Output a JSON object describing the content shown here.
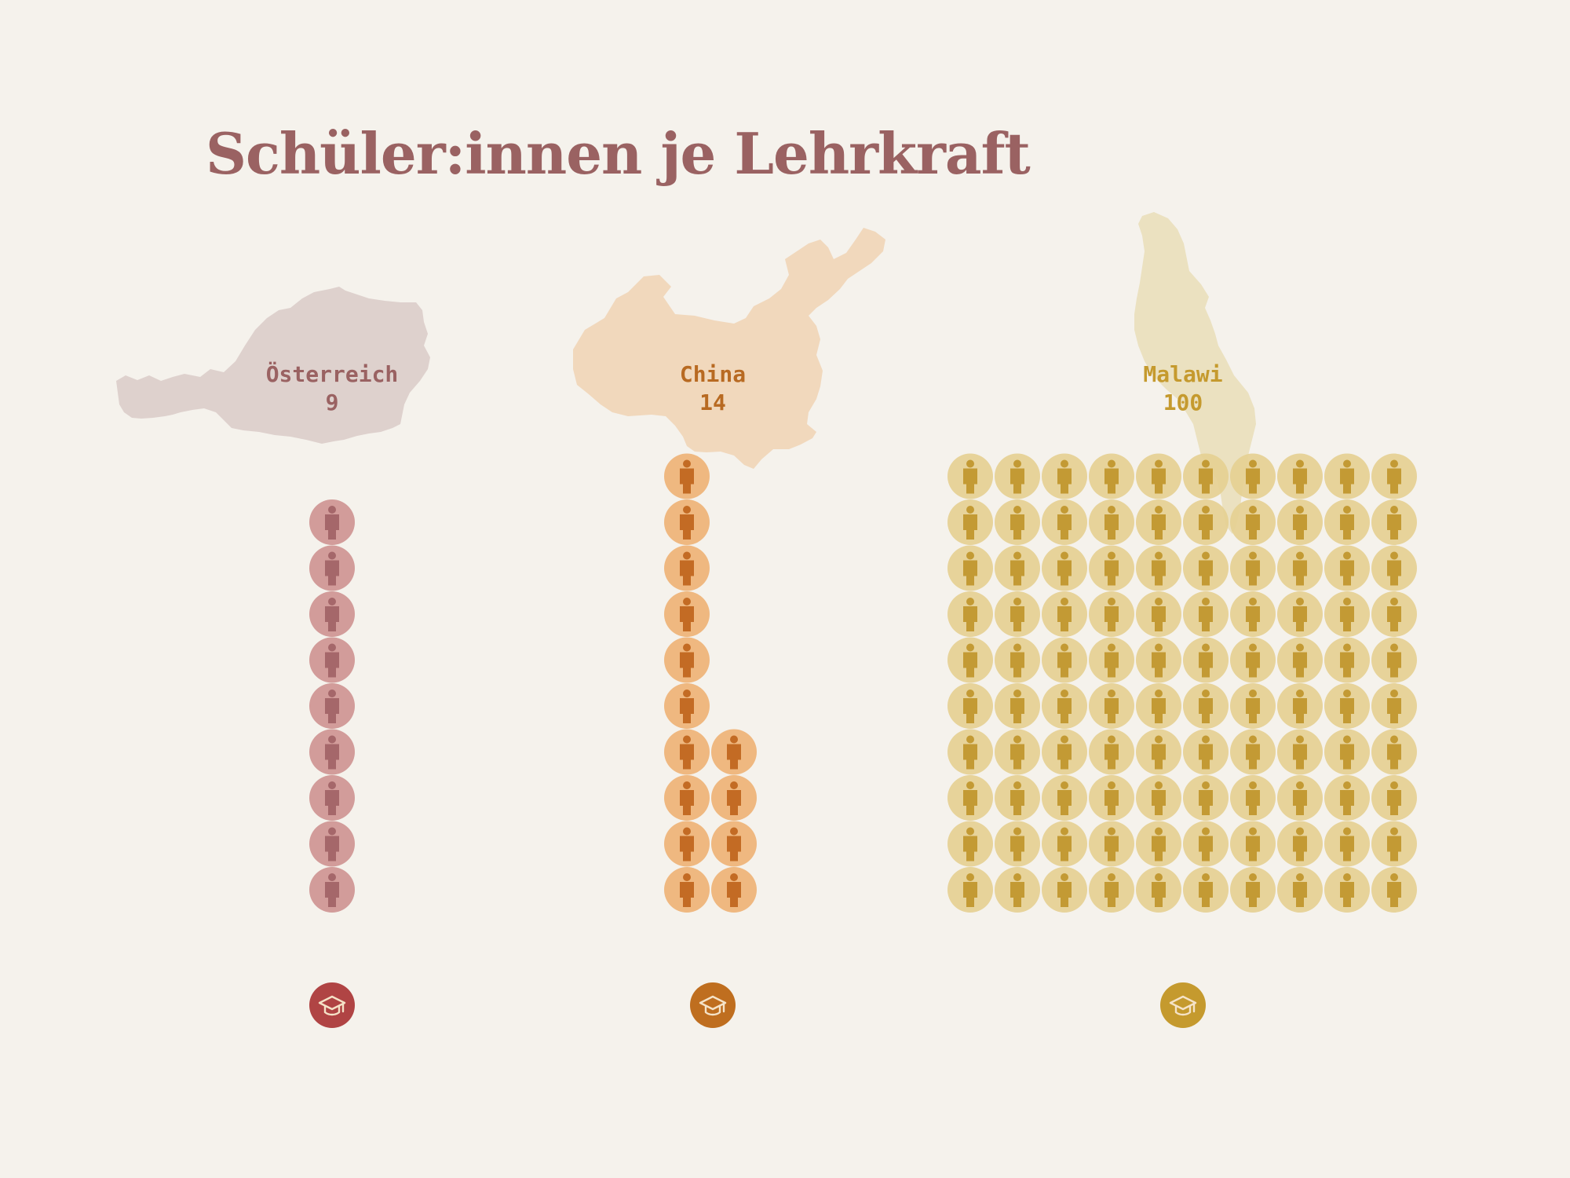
{
  "title": "Schüler:innen je Lehrkraft",
  "chart_data": {
    "type": "pictogram",
    "title": "Schüler:innen je Lehrkraft",
    "unit_icon": "person-icon",
    "base_icon": "graduation-cap-icon",
    "categories": [
      "Österreich",
      "China",
      "Malawi"
    ],
    "values": [
      9,
      14,
      100
    ],
    "series": [
      {
        "name": "Österreich",
        "value": 9,
        "map_color": "#dccfcb",
        "dot_color": "#d29c9a",
        "figure_color": "#a5676a",
        "cap_color": "#b04444",
        "label_color": "#9a6262"
      },
      {
        "name": "China",
        "value": 14,
        "map_color": "#f0d6b9",
        "dot_color": "#efb880",
        "figure_color": "#c36b24",
        "cap_color": "#bf6e1f",
        "label_color": "#b86a22"
      },
      {
        "name": "Malawi",
        "value": 100,
        "map_color": "#eadfbe",
        "dot_color": "#e5d092",
        "figure_color": "#c39a34",
        "cap_color": "#c59a2e",
        "label_color": "#c59a2e"
      }
    ]
  }
}
